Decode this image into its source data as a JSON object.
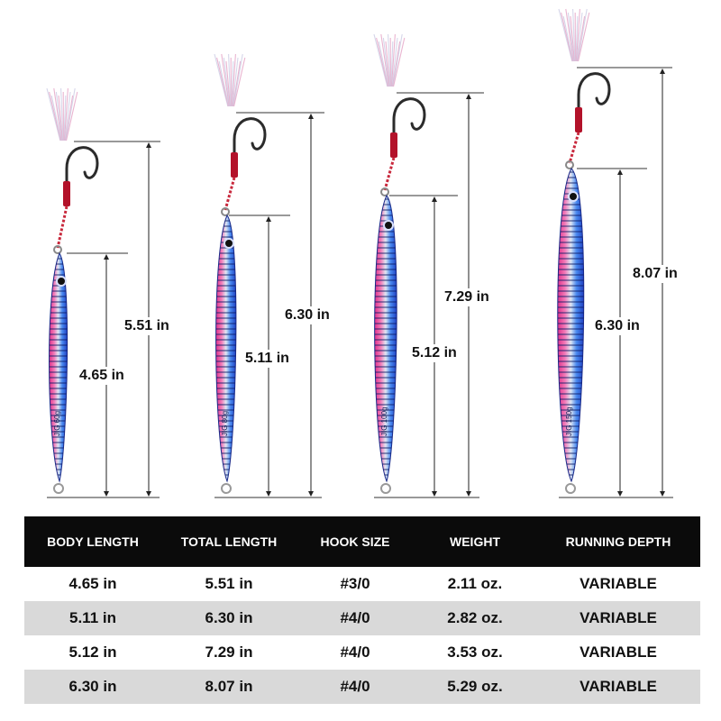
{
  "lures": [
    {
      "body_length_label": "4.65 in",
      "total_length_label": "5.51 in"
    },
    {
      "body_length_label": "5.11 in",
      "total_length_label": "6.30 in"
    },
    {
      "body_length_label": "5.12 in",
      "total_length_label": "7.29 in"
    },
    {
      "body_length_label": "6.30 in",
      "total_length_label": "8.07 in"
    }
  ],
  "lure_text": [
    "JIG 60g",
    "JIG 80g",
    "JIG 100g",
    "JIG 150g"
  ],
  "table": {
    "headers": [
      "BODY LENGTH",
      "TOTAL LENGTH",
      "HOOK SIZE",
      "WEIGHT",
      "RUNNING DEPTH"
    ],
    "rows": [
      [
        "4.65 in",
        "5.51 in",
        "#3/0",
        "2.11 oz.",
        "VARIABLE"
      ],
      [
        "5.11 in",
        "6.30 in",
        "#4/0",
        "2.82 oz.",
        "VARIABLE"
      ],
      [
        "5.12 in",
        "7.29 in",
        "#4/0",
        "3.53 oz.",
        "VARIABLE"
      ],
      [
        "6.30 in",
        "8.07 in",
        "#4/0",
        "5.29 oz.",
        "VARIABLE"
      ]
    ]
  },
  "colors": {
    "lure_blue": "#1f4fd6",
    "lure_pink": "#e0318a",
    "lure_silver": "#dfe6f2",
    "hook_wrap": "#b3122a",
    "header_bg": "#0b0b0b",
    "row_alt_bg": "#d9d9d9"
  },
  "icons": [
    "fishing-lure-icon",
    "assist-hook-icon",
    "feather-skirt-icon",
    "dimension-arrow-icon"
  ]
}
